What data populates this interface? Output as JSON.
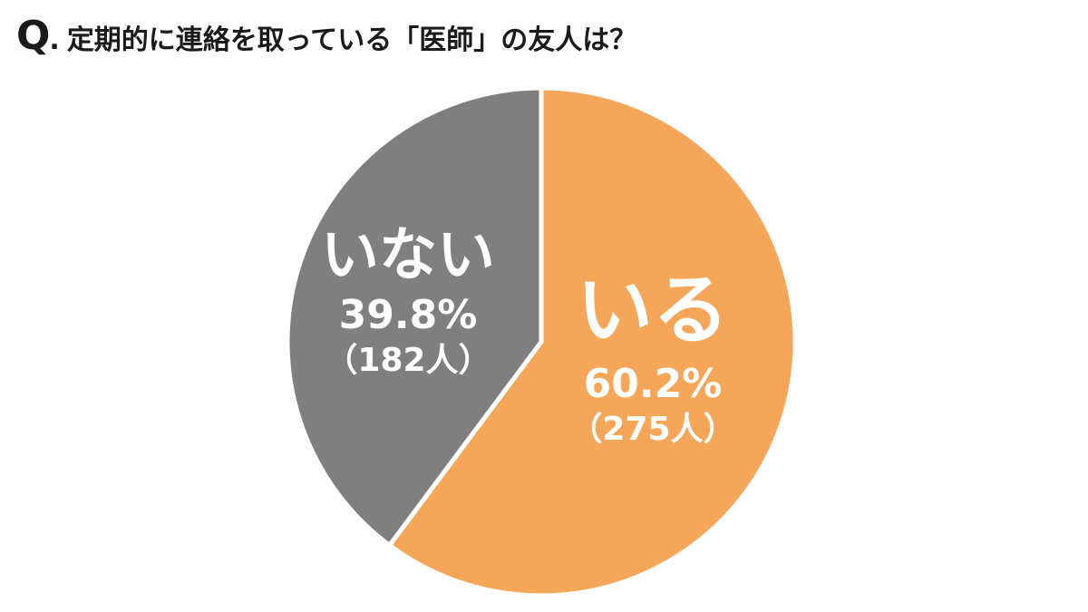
{
  "title": {
    "q_mark": "Q",
    "dot": ".",
    "text": "定期的に連絡を取っている「医師」の友人は？"
  },
  "chart_data": {
    "type": "pie",
    "title": "定期的に連絡を取っている「医師」の友人は？",
    "start": "12 o'clock",
    "direction": "clockwise",
    "slices": [
      {
        "label": "いる",
        "percent": 60.2,
        "percent_text": "60.2%",
        "count": 275,
        "count_text": "（275人）",
        "color": "#F5A658"
      },
      {
        "label": "いない",
        "percent": 39.8,
        "percent_text": "39.8%",
        "count": 182,
        "count_text": "（182人）",
        "color": "#7F7F7F"
      }
    ],
    "separator_color": "#ffffff",
    "label_color": "#ffffff"
  }
}
